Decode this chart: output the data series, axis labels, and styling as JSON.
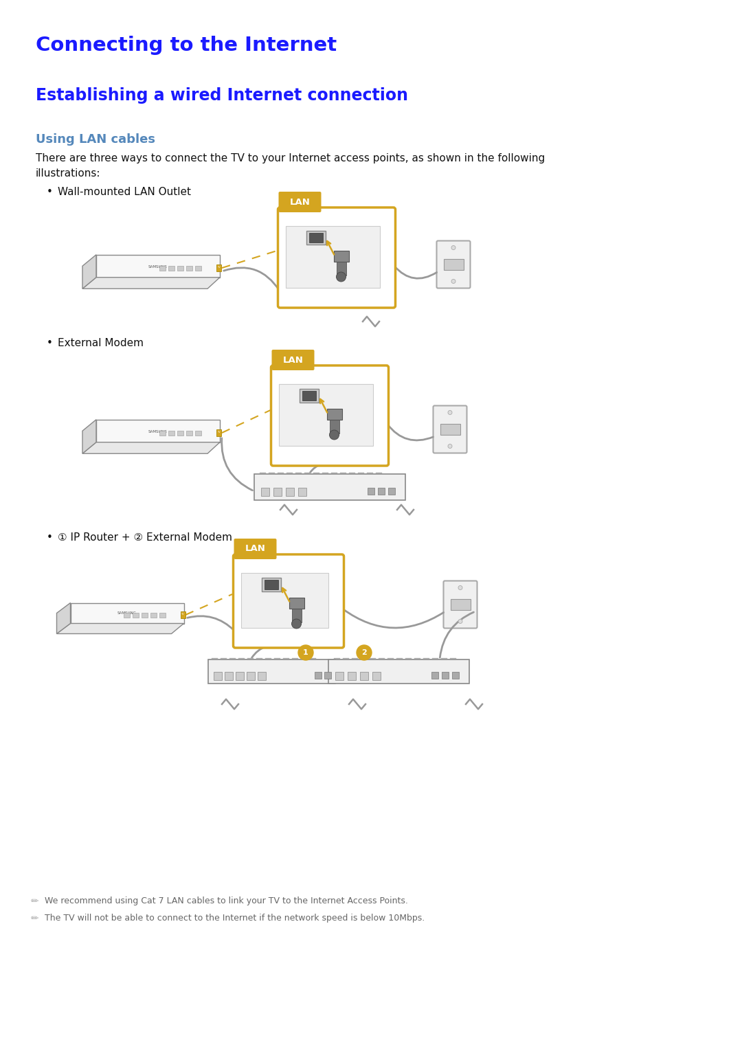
{
  "bg_color": "#ffffff",
  "title": "Connecting to the Internet",
  "title_color": "#1a1aff",
  "title_fontsize": 21,
  "subtitle": "Establishing a wired Internet connection",
  "subtitle_color": "#1a1aff",
  "subtitle_fontsize": 17,
  "section_title": "Using LAN cables",
  "section_title_color": "#5588bb",
  "section_title_fontsize": 13,
  "body_text1": "There are three ways to connect the TV to your Internet access points, as shown in the following",
  "body_text2": "illustrations:",
  "body_fontsize": 11,
  "body_color": "#111111",
  "bullet1": "Wall-mounted LAN Outlet",
  "bullet2": "External Modem",
  "bullet3": "① IP Router + ② External Modem",
  "bullet_fontsize": 11,
  "note1": "We recommend using Cat 7 LAN cables to link your TV to the Internet Access Points.",
  "note2": "The TV will not be able to connect to the Internet if the network speed is below 10Mbps.",
  "note_color": "#666666",
  "note_fontsize": 9,
  "lan_color": "#d4a520",
  "lan_text_color": "#ffffff",
  "tv_face": "#f8f8f8",
  "tv_edge": "#888888",
  "cable_color": "#999999",
  "dashed_color": "#d4a520",
  "outlet_face": "#f0f0f0",
  "outlet_edge": "#888888",
  "modem_face": "#f0f0f0",
  "modem_edge": "#888888"
}
